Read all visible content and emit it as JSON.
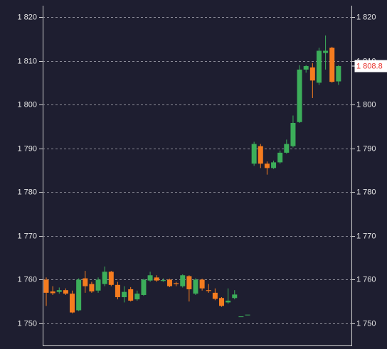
{
  "chart_data": {
    "type": "candlestick",
    "open": [
      1760,
      1757.3,
      1757.2,
      1757.6,
      1756.8,
      1753,
      1760.3,
      1759,
      1757.5,
      1759,
      1761.8,
      1758.8,
      1756,
      1757.8,
      1755.5,
      1756.5,
      1759.8,
      1760.5,
      1759.7,
      1760,
      1759.2,
      1758.5,
      1760.8,
      1756.8,
      1760,
      1757.6,
      1757,
      1755.8,
      1754.8,
      1755.8,
      1751.6,
      1752,
      1786.5,
      1790.5,
      1786.5,
      1785.5,
      1786.8,
      1789,
      1790.5,
      1796,
      1808,
      1808.5,
      1805,
      1811.8,
      1813,
      1805.3
    ],
    "high": [
      1760.5,
      1758.5,
      1758.2,
      1758,
      1757.5,
      1760.3,
      1762,
      1759.5,
      1760.5,
      1763,
      1762,
      1759.5,
      1758.5,
      1758.3,
      1757.5,
      1760.2,
      1761.8,
      1761,
      1760.3,
      1760.2,
      1759.5,
      1761.2,
      1761,
      1760.3,
      1760.2,
      1759,
      1758,
      1756,
      1758,
      1757.6,
      1751.6,
      1752,
      1791.5,
      1791,
      1787,
      1787.2,
      1789.5,
      1792,
      1797.5,
      1809,
      1809,
      1809.5,
      1813,
      1815.8,
      1813.2,
      1809
    ],
    "low": [
      1754,
      1756.5,
      1756.8,
      1756.5,
      1752.3,
      1752.8,
      1757,
      1757,
      1757,
      1758.5,
      1758.5,
      1755.5,
      1754.8,
      1755,
      1755.2,
      1756.3,
      1759.5,
      1759.5,
      1759.5,
      1758.3,
      1758.5,
      1758.2,
      1755,
      1756.5,
      1757.5,
      1757,
      1755.3,
      1753.8,
      1754.5,
      1755.5,
      1751.6,
      1752,
      1786,
      1785.5,
      1784,
      1785.3,
      1786.5,
      1788.8,
      1790.2,
      1795.8,
      1807.3,
      1801.5,
      1804.5,
      1808,
      1805,
      1804.5
    ],
    "close": [
      1757,
      1756.9,
      1757.6,
      1756.8,
      1752.5,
      1760,
      1758.5,
      1757.3,
      1760,
      1761.8,
      1758.8,
      1756,
      1757.2,
      1755.2,
      1756.8,
      1760,
      1761,
      1759.8,
      1759.9,
      1758.5,
      1759,
      1761,
      1757.8,
      1760,
      1758,
      1757.4,
      1755.6,
      1754,
      1755.2,
      1756.6,
      1751.6,
      1752,
      1791,
      1786.5,
      1785.5,
      1786.8,
      1789,
      1791,
      1795.8,
      1808,
      1808.8,
      1805.5,
      1812.3,
      1812.3,
      1805.2,
      1808.8
    ],
    "up_color": "#3cae5a",
    "down_color": "#f57c1f",
    "ylim": [
      1744.8,
      1822.6
    ],
    "yticks": [
      {
        "value": 1750,
        "label": "1 750"
      },
      {
        "value": 1760,
        "label": "1 760"
      },
      {
        "value": 1770,
        "label": "1 770"
      },
      {
        "value": 1780,
        "label": "1 780"
      },
      {
        "value": 1790,
        "label": "1 790"
      },
      {
        "value": 1800,
        "label": "1 800"
      },
      {
        "value": 1810,
        "label": "1 810"
      },
      {
        "value": 1820,
        "label": "1 820"
      }
    ],
    "grid": true,
    "last_price": {
      "value": 1808.8,
      "label": "1 808.8",
      "color": "#e8302a"
    }
  }
}
